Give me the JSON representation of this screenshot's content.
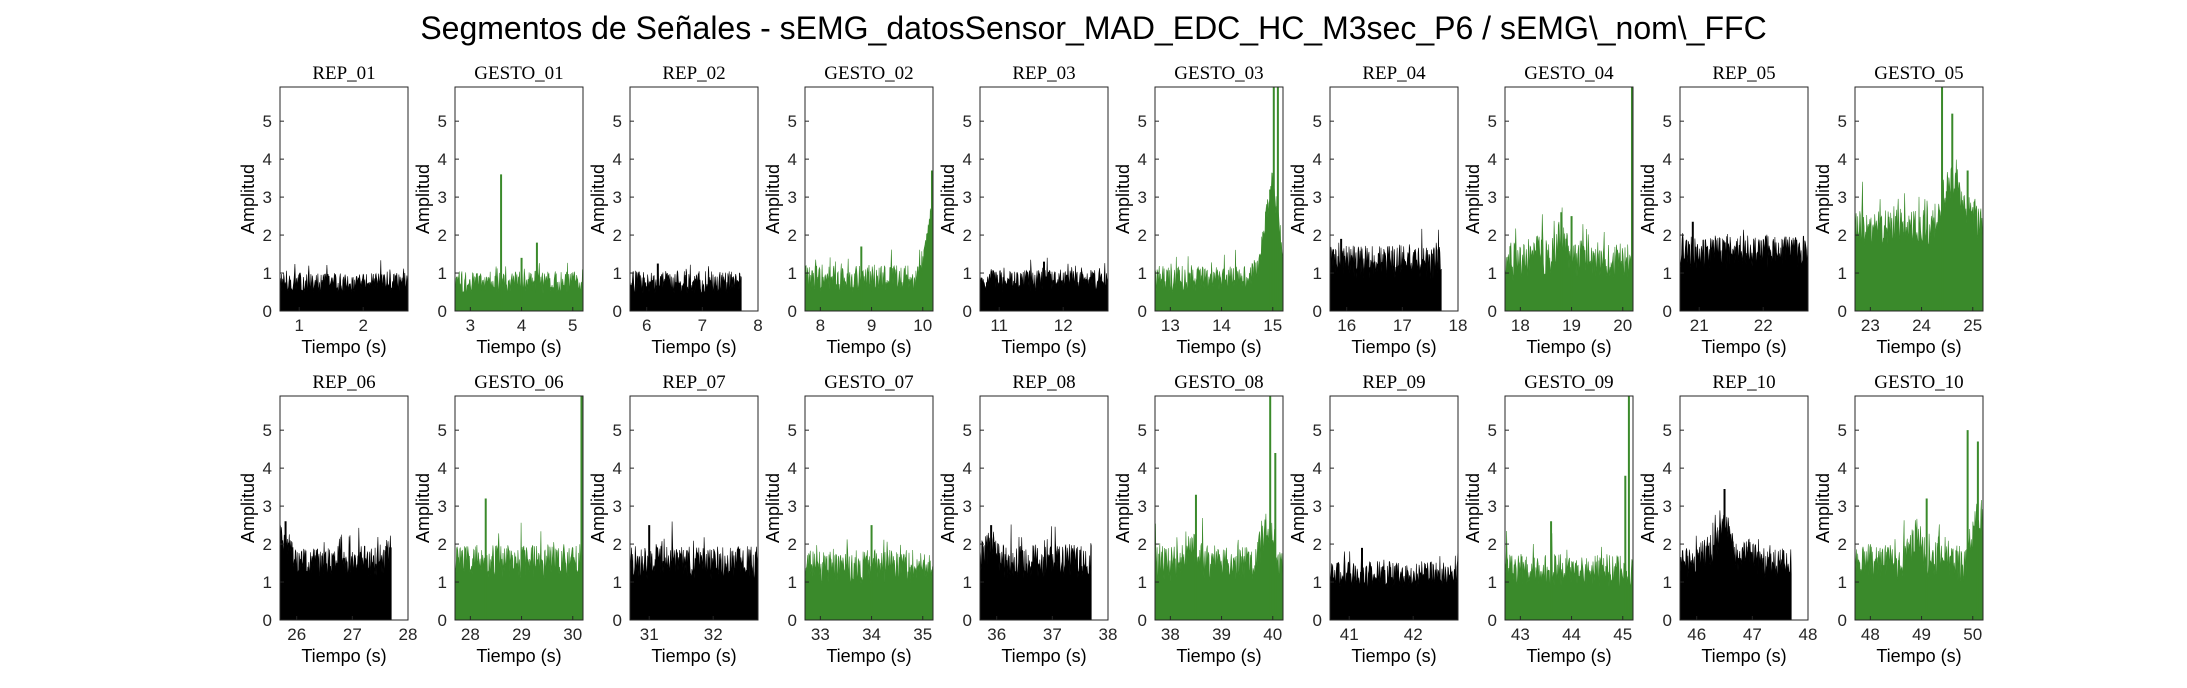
{
  "figure": {
    "title": "Segmentos de Señales - sEMG_datosSensor_MAD_EDC_HC_M3sec_P6 / sEMG\\_nom\\_FFC"
  },
  "colors": {
    "rep": "#000000",
    "gesto": "#3a8a2b",
    "axis": "#262626",
    "background": "#ffffff"
  },
  "chart_data": [
    {
      "type": "area",
      "title": "REP_01",
      "kind": "rep",
      "xlabel": "Tiempo (s)",
      "ylabel": "Amplitud",
      "xlim": [
        0.7,
        2.7
      ],
      "ylim": [
        0,
        5.9
      ],
      "xticks": [
        1,
        2
      ],
      "yticks": [
        0,
        1,
        2,
        3,
        4,
        5
      ],
      "x_range": [
        0.7,
        2.7
      ],
      "baseline": 0.75,
      "noise": 0.25,
      "envelope": [],
      "spikes": []
    },
    {
      "type": "area",
      "title": "GESTO_01",
      "kind": "gesto",
      "xlabel": "Tiempo (s)",
      "ylabel": "Amplitud",
      "xlim": [
        2.7,
        5.2
      ],
      "ylim": [
        0,
        5.9
      ],
      "xticks": [
        3,
        4,
        5
      ],
      "yticks": [
        0,
        1,
        2,
        3,
        4,
        5
      ],
      "x_range": [
        2.7,
        5.2
      ],
      "baseline": 0.75,
      "noise": 0.3,
      "envelope": [],
      "spikes": [
        {
          "x": 3.6,
          "y": 3.6
        },
        {
          "x": 4.3,
          "y": 1.8
        },
        {
          "x": 4.0,
          "y": 1.4
        }
      ]
    },
    {
      "type": "area",
      "title": "REP_02",
      "kind": "rep",
      "xlabel": "Tiempo (s)",
      "ylabel": "Amplitud",
      "xlim": [
        5.7,
        8
      ],
      "ylim": [
        0,
        5.9
      ],
      "xticks": [
        6,
        7,
        8
      ],
      "yticks": [
        0,
        1,
        2,
        3,
        4,
        5
      ],
      "x_range": [
        5.7,
        7.7
      ],
      "baseline": 0.75,
      "noise": 0.3,
      "envelope": [],
      "spikes": [
        {
          "x": 6.2,
          "y": 1.25
        }
      ]
    },
    {
      "type": "area",
      "title": "GESTO_02",
      "kind": "gesto",
      "xlabel": "Tiempo (s)",
      "ylabel": "Amplitud",
      "xlim": [
        7.7,
        10.2
      ],
      "ylim": [
        0,
        5.9
      ],
      "xticks": [
        8,
        9,
        10
      ],
      "yticks": [
        0,
        1,
        2,
        3,
        4,
        5
      ],
      "x_range": [
        7.7,
        10.2
      ],
      "baseline": 0.85,
      "noise": 0.35,
      "envelope": [
        {
          "x": 9.9,
          "y": 0
        },
        {
          "x": 10.2,
          "y": 1.8
        }
      ],
      "spikes": [
        {
          "x": 10.18,
          "y": 3.7
        },
        {
          "x": 8.8,
          "y": 1.7
        }
      ]
    },
    {
      "type": "area",
      "title": "REP_03",
      "kind": "rep",
      "xlabel": "Tiempo (s)",
      "ylabel": "Amplitud",
      "xlim": [
        10.7,
        12.7
      ],
      "ylim": [
        0,
        5.9
      ],
      "xticks": [
        11,
        12
      ],
      "yticks": [
        0,
        1,
        2,
        3,
        4,
        5
      ],
      "x_range": [
        10.7,
        12.7
      ],
      "baseline": 0.8,
      "noise": 0.3,
      "envelope": [],
      "spikes": [
        {
          "x": 11.7,
          "y": 1.3
        }
      ]
    },
    {
      "type": "area",
      "title": "GESTO_03",
      "kind": "gesto",
      "xlabel": "Tiempo (s)",
      "ylabel": "Amplitud",
      "xlim": [
        12.7,
        15.2
      ],
      "ylim": [
        0,
        5.9
      ],
      "xticks": [
        13,
        14,
        15
      ],
      "yticks": [
        0,
        1,
        2,
        3,
        4,
        5
      ],
      "x_range": [
        12.7,
        15.2
      ],
      "baseline": 0.85,
      "noise": 0.35,
      "envelope": [
        {
          "x": 14.8,
          "y": 0.5
        },
        {
          "x": 15.0,
          "y": 2.5
        }
      ],
      "spikes": [
        {
          "x": 15.02,
          "y": 5.9
        },
        {
          "x": 15.1,
          "y": 5.9
        },
        {
          "x": 14.95,
          "y": 3.2
        }
      ]
    },
    {
      "type": "area",
      "title": "REP_04",
      "kind": "rep",
      "xlabel": "Tiempo (s)",
      "ylabel": "Amplitud",
      "xlim": [
        15.7,
        18
      ],
      "ylim": [
        0,
        5.9
      ],
      "xticks": [
        16,
        17,
        18
      ],
      "yticks": [
        0,
        1,
        2,
        3,
        4,
        5
      ],
      "x_range": [
        15.7,
        17.7
      ],
      "baseline": 1.3,
      "noise": 0.45,
      "envelope": [],
      "spikes": [
        {
          "x": 15.9,
          "y": 1.9
        }
      ]
    },
    {
      "type": "area",
      "title": "GESTO_04",
      "kind": "gesto",
      "xlabel": "Tiempo (s)",
      "ylabel": "Amplitud",
      "xlim": [
        17.7,
        20.2
      ],
      "ylim": [
        0,
        5.9
      ],
      "xticks": [
        18,
        19,
        20
      ],
      "yticks": [
        0,
        1,
        2,
        3,
        4,
        5
      ],
      "x_range": [
        17.7,
        20.2
      ],
      "baseline": 1.3,
      "noise": 0.5,
      "envelope": [
        {
          "x": 18.3,
          "y": 0.3
        },
        {
          "x": 18.8,
          "y": 0.7
        },
        {
          "x": 19.3,
          "y": 0.2
        }
      ],
      "spikes": [
        {
          "x": 20.18,
          "y": 5.9
        },
        {
          "x": 18.8,
          "y": 2.6
        },
        {
          "x": 19.0,
          "y": 2.5
        }
      ]
    },
    {
      "type": "area",
      "title": "REP_05",
      "kind": "rep",
      "xlabel": "Tiempo (s)",
      "ylabel": "Amplitud",
      "xlim": [
        20.7,
        22.7
      ],
      "ylim": [
        0,
        5.9
      ],
      "xticks": [
        21,
        22
      ],
      "yticks": [
        0,
        1,
        2,
        3,
        4,
        5
      ],
      "x_range": [
        20.7,
        22.7
      ],
      "baseline": 1.55,
      "noise": 0.45,
      "envelope": [],
      "spikes": [
        {
          "x": 20.9,
          "y": 2.35
        }
      ]
    },
    {
      "type": "area",
      "title": "GESTO_05",
      "kind": "gesto",
      "xlabel": "Tiempo (s)",
      "ylabel": "Amplitud",
      "xlim": [
        22.7,
        25.2
      ],
      "ylim": [
        0,
        5.9
      ],
      "xticks": [
        23,
        24,
        25
      ],
      "yticks": [
        0,
        1,
        2,
        3,
        4,
        5
      ],
      "x_range": [
        22.7,
        25.2
      ],
      "baseline": 2.2,
      "noise": 0.5,
      "envelope": [
        {
          "x": 24.4,
          "y": 0.3
        },
        {
          "x": 24.6,
          "y": 1.2
        },
        {
          "x": 24.9,
          "y": 0.6
        }
      ],
      "spikes": [
        {
          "x": 24.4,
          "y": 5.9
        },
        {
          "x": 24.6,
          "y": 5.2
        },
        {
          "x": 24.9,
          "y": 3.7
        }
      ]
    },
    {
      "type": "area",
      "title": "REP_06",
      "kind": "rep",
      "xlabel": "Tiempo (s)",
      "ylabel": "Amplitud",
      "xlim": [
        25.7,
        28
      ],
      "ylim": [
        0,
        5.9
      ],
      "xticks": [
        26,
        27,
        28
      ],
      "yticks": [
        0,
        1,
        2,
        3,
        4,
        5
      ],
      "x_range": [
        25.7,
        27.7
      ],
      "baseline": 1.55,
      "noise": 0.4,
      "envelope": [
        {
          "x": 25.8,
          "y": 0.5
        }
      ],
      "spikes": [
        {
          "x": 25.8,
          "y": 2.6
        }
      ]
    },
    {
      "type": "area",
      "title": "GESTO_06",
      "kind": "gesto",
      "xlabel": "Tiempo (s)",
      "ylabel": "Amplitud",
      "xlim": [
        27.7,
        30.2
      ],
      "ylim": [
        0,
        5.9
      ],
      "xticks": [
        28,
        29,
        30
      ],
      "yticks": [
        0,
        1,
        2,
        3,
        4,
        5
      ],
      "x_range": [
        27.7,
        30.2
      ],
      "baseline": 1.55,
      "noise": 0.45,
      "envelope": [],
      "spikes": [
        {
          "x": 30.17,
          "y": 5.9
        },
        {
          "x": 28.3,
          "y": 3.2
        }
      ]
    },
    {
      "type": "area",
      "title": "REP_07",
      "kind": "rep",
      "xlabel": "Tiempo (s)",
      "ylabel": "Amplitud",
      "xlim": [
        30.7,
        32.7
      ],
      "ylim": [
        0,
        5.9
      ],
      "xticks": [
        31,
        32
      ],
      "yticks": [
        0,
        1,
        2,
        3,
        4,
        5
      ],
      "x_range": [
        30.7,
        32.7
      ],
      "baseline": 1.5,
      "noise": 0.45,
      "envelope": [],
      "spikes": [
        {
          "x": 31.0,
          "y": 2.5
        }
      ]
    },
    {
      "type": "area",
      "title": "GESTO_07",
      "kind": "gesto",
      "xlabel": "Tiempo (s)",
      "ylabel": "Amplitud",
      "xlim": [
        32.7,
        35.2
      ],
      "ylim": [
        0,
        5.9
      ],
      "xticks": [
        33,
        34,
        35
      ],
      "yticks": [
        0,
        1,
        2,
        3,
        4,
        5
      ],
      "x_range": [
        32.7,
        35.2
      ],
      "baseline": 1.4,
      "noise": 0.45,
      "envelope": [],
      "spikes": [
        {
          "x": 34.0,
          "y": 2.5
        }
      ]
    },
    {
      "type": "area",
      "title": "REP_08",
      "kind": "rep",
      "xlabel": "Tiempo (s)",
      "ylabel": "Amplitud",
      "xlim": [
        35.7,
        38
      ],
      "ylim": [
        0,
        5.9
      ],
      "xticks": [
        36,
        37,
        38
      ],
      "yticks": [
        0,
        1,
        2,
        3,
        4,
        5
      ],
      "x_range": [
        35.7,
        37.7
      ],
      "baseline": 1.55,
      "noise": 0.45,
      "envelope": [
        {
          "x": 35.9,
          "y": 0.4
        }
      ],
      "spikes": [
        {
          "x": 35.9,
          "y": 2.5
        }
      ]
    },
    {
      "type": "area",
      "title": "GESTO_08",
      "kind": "gesto",
      "xlabel": "Tiempo (s)",
      "ylabel": "Amplitud",
      "xlim": [
        37.7,
        40.2
      ],
      "ylim": [
        0,
        5.9
      ],
      "xticks": [
        38,
        39,
        40
      ],
      "yticks": [
        0,
        1,
        2,
        3,
        4,
        5
      ],
      "x_range": [
        37.7,
        40.2
      ],
      "baseline": 1.5,
      "noise": 0.5,
      "envelope": [
        {
          "x": 38.4,
          "y": 0.6
        },
        {
          "x": 38.9,
          "y": 0.0
        },
        {
          "x": 39.9,
          "y": 1.0
        }
      ],
      "spikes": [
        {
          "x": 39.95,
          "y": 5.9
        },
        {
          "x": 40.05,
          "y": 4.4
        },
        {
          "x": 38.5,
          "y": 3.3
        }
      ]
    },
    {
      "type": "area",
      "title": "REP_09",
      "kind": "rep",
      "xlabel": "Tiempo (s)",
      "ylabel": "Amplitud",
      "xlim": [
        40.7,
        42.7
      ],
      "ylim": [
        0,
        5.9
      ],
      "xticks": [
        41,
        42
      ],
      "yticks": [
        0,
        1,
        2,
        3,
        4,
        5
      ],
      "x_range": [
        40.7,
        42.7
      ],
      "baseline": 1.2,
      "noise": 0.35,
      "envelope": [],
      "spikes": [
        {
          "x": 41.2,
          "y": 1.9
        }
      ]
    },
    {
      "type": "area",
      "title": "GESTO_09",
      "kind": "gesto",
      "xlabel": "Tiempo (s)",
      "ylabel": "Amplitud",
      "xlim": [
        42.7,
        45.2
      ],
      "ylim": [
        0,
        5.9
      ],
      "xticks": [
        43,
        44,
        45
      ],
      "yticks": [
        0,
        1,
        2,
        3,
        4,
        5
      ],
      "x_range": [
        42.7,
        45.2
      ],
      "baseline": 1.3,
      "noise": 0.45,
      "envelope": [],
      "spikes": [
        {
          "x": 45.12,
          "y": 5.9
        },
        {
          "x": 45.05,
          "y": 3.8
        },
        {
          "x": 43.6,
          "y": 2.6
        }
      ]
    },
    {
      "type": "area",
      "title": "REP_10",
      "kind": "rep",
      "xlabel": "Tiempo (s)",
      "ylabel": "Amplitud",
      "xlim": [
        45.7,
        48
      ],
      "ylim": [
        0,
        5.9
      ],
      "xticks": [
        46,
        47,
        48
      ],
      "yticks": [
        0,
        1,
        2,
        3,
        4,
        5
      ],
      "x_range": [
        45.7,
        47.7
      ],
      "baseline": 1.5,
      "noise": 0.4,
      "envelope": [
        {
          "x": 46.2,
          "y": 0.3
        },
        {
          "x": 46.5,
          "y": 1.1
        },
        {
          "x": 46.9,
          "y": 0.3
        }
      ],
      "spikes": [
        {
          "x": 46.5,
          "y": 3.45
        }
      ]
    },
    {
      "type": "area",
      "title": "GESTO_10",
      "kind": "gesto",
      "xlabel": "Tiempo (s)",
      "ylabel": "Amplitud",
      "xlim": [
        47.7,
        50.2
      ],
      "ylim": [
        0,
        5.9
      ],
      "xticks": [
        48,
        49,
        50
      ],
      "yticks": [
        0,
        1,
        2,
        3,
        4,
        5
      ],
      "x_range": [
        47.7,
        50.2
      ],
      "baseline": 1.5,
      "noise": 0.5,
      "envelope": [
        {
          "x": 48.9,
          "y": 0.7
        },
        {
          "x": 49.4,
          "y": 0.3
        },
        {
          "x": 50.1,
          "y": 1.2
        }
      ],
      "spikes": [
        {
          "x": 49.9,
          "y": 5.0
        },
        {
          "x": 50.1,
          "y": 4.7
        },
        {
          "x": 49.1,
          "y": 3.2
        }
      ]
    }
  ]
}
